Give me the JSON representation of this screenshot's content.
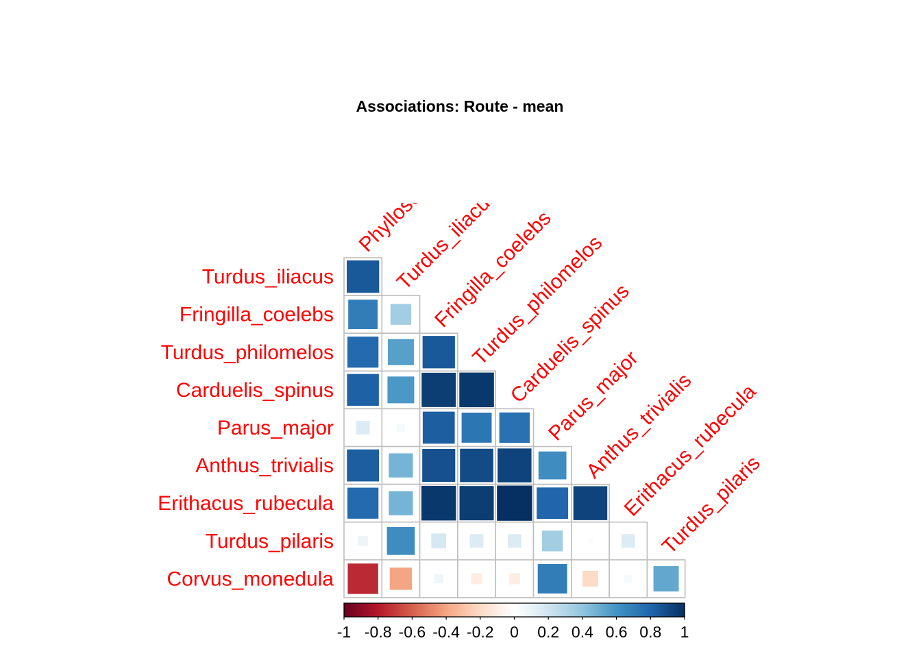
{
  "chart_data": {
    "type": "heatmap",
    "title": "Associations: Route - mean",
    "row_labels": [
      "Turdus_iliacus",
      "Fringilla_coelebs",
      "Turdus_philomelos",
      "Carduelis_spinus",
      "Parus_major",
      "Anthus_trivialis",
      "Erithacus_rubecula",
      "Turdus_pilaris",
      "Corvus_monedula"
    ],
    "col_labels": [
      "Phylloscopus_trochilus",
      "Turdus_iliacus",
      "Fringilla_coelebs",
      "Turdus_philomelos",
      "Carduelis_spinus",
      "Parus_major",
      "Anthus_trivialis",
      "Erithacus_rubecula",
      "Turdus_pilaris"
    ],
    "matrix": [
      [
        0.85
      ],
      [
        0.7,
        0.35
      ],
      [
        0.78,
        0.55,
        0.85
      ],
      [
        0.82,
        0.58,
        0.95,
        0.97
      ],
      [
        0.15,
        0.05,
        0.83,
        0.73,
        0.75
      ],
      [
        0.83,
        0.47,
        0.88,
        0.9,
        0.93,
        0.63
      ],
      [
        0.78,
        0.47,
        0.97,
        0.95,
        1.0,
        0.8,
        0.93
      ],
      [
        0.08,
        0.63,
        0.18,
        0.15,
        0.15,
        0.35,
        0.02,
        0.15
      ],
      [
        -0.75,
        -0.4,
        0.07,
        -0.1,
        -0.1,
        0.7,
        -0.2,
        0.05,
        0.52
      ]
    ],
    "color_scale": {
      "range": [
        -1,
        1
      ],
      "stops": [
        "#67001F",
        "#B2182B",
        "#D6604D",
        "#F4A582",
        "#FDDBC7",
        "#FFFFFF",
        "#D1E5F0",
        "#92C5DE",
        "#4393C3",
        "#2166AC",
        "#053061"
      ]
    },
    "legend": {
      "position": "bottom",
      "ticks": [
        "-1",
        "-0.8",
        "-0.6",
        "-0.4",
        "-0.2",
        "0",
        "0.2",
        "0.4",
        "0.6",
        "0.8",
        "1"
      ]
    },
    "label_color": "#FF0000"
  }
}
